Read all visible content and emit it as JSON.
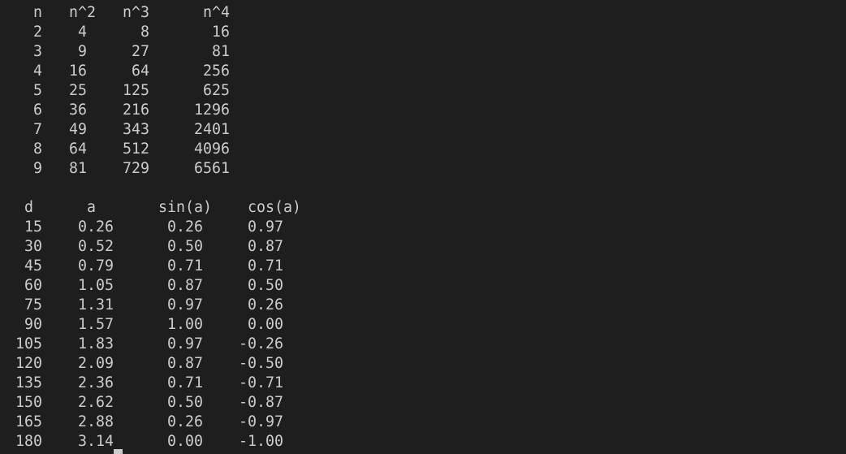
{
  "terminal": {
    "powers_table": {
      "headers": [
        "n",
        "n^2",
        "n^3",
        "n^4"
      ],
      "rows": [
        [
          "2",
          "4",
          "8",
          "16"
        ],
        [
          "3",
          "9",
          "27",
          "81"
        ],
        [
          "4",
          "16",
          "64",
          "256"
        ],
        [
          "5",
          "25",
          "125",
          "625"
        ],
        [
          "6",
          "36",
          "216",
          "1296"
        ],
        [
          "7",
          "49",
          "343",
          "2401"
        ],
        [
          "8",
          "64",
          "512",
          "4096"
        ],
        [
          "9",
          "81",
          "729",
          "6561"
        ]
      ]
    },
    "trig_table": {
      "headers": [
        "d",
        "a",
        "sin(a)",
        "cos(a)"
      ],
      "rows": [
        [
          "15",
          "0.26",
          "0.26",
          "0.97"
        ],
        [
          "30",
          "0.52",
          "0.50",
          "0.87"
        ],
        [
          "45",
          "0.79",
          "0.71",
          "0.71"
        ],
        [
          "60",
          "1.05",
          "0.87",
          "0.50"
        ],
        [
          "75",
          "1.31",
          "0.97",
          "0.26"
        ],
        [
          "90",
          "1.57",
          "1.00",
          "0.00"
        ],
        [
          "105",
          "1.83",
          "0.97",
          "-0.26"
        ],
        [
          "120",
          "2.09",
          "0.87",
          "-0.50"
        ],
        [
          "135",
          "2.36",
          "0.71",
          "-0.71"
        ],
        [
          "150",
          "2.62",
          "0.50",
          "-0.87"
        ],
        [
          "165",
          "2.88",
          "0.26",
          "-0.97"
        ],
        [
          "180",
          "3.14",
          "0.00",
          "-1.00"
        ]
      ]
    },
    "colors": {
      "background": "#1e1e1e",
      "text": "#cccccc"
    }
  }
}
